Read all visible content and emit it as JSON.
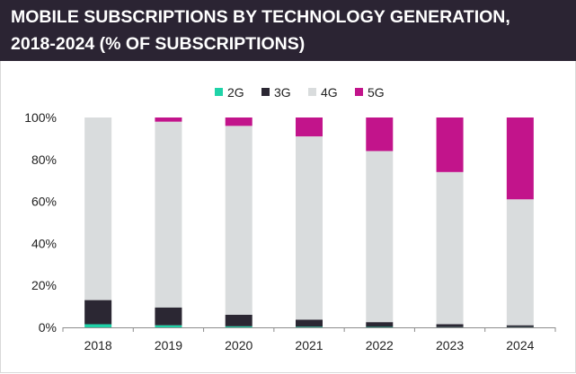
{
  "title": "MOBILE SUBSCRIPTIONS BY TECHNOLOGY GENERATION,\n2018-2024 (% OF SUBSCRIPTIONS)",
  "colors": {
    "title_background": "#2b2433",
    "title_text": "#ffffff",
    "2G": "#1fd3a8",
    "3G": "#2b2733",
    "4G": "#d9dcdd",
    "5G": "#c2148b"
  },
  "chart_data": {
    "type": "bar",
    "stacked": true,
    "title": "MOBILE SUBSCRIPTIONS BY TECHNOLOGY GENERATION, 2018-2024 (% OF SUBSCRIPTIONS)",
    "categories": [
      "2018",
      "2019",
      "2020",
      "2021",
      "2022",
      "2023",
      "2024"
    ],
    "series": [
      {
        "name": "2G",
        "values": [
          1.5,
          1.0,
          0.5,
          0.3,
          0.2,
          0.1,
          0.1
        ]
      },
      {
        "name": "3G",
        "values": [
          11.5,
          8.5,
          5.5,
          3.4,
          2.3,
          1.4,
          0.9
        ]
      },
      {
        "name": "4G",
        "values": [
          87.0,
          88.5,
          90.0,
          87.3,
          81.5,
          72.5,
          60.0
        ]
      },
      {
        "name": "5G",
        "values": [
          0.0,
          2.0,
          4.0,
          9.0,
          16.0,
          26.0,
          39.0
        ]
      }
    ],
    "ylim": [
      0,
      100
    ],
    "yticks": [
      "0%",
      "20%",
      "40%",
      "60%",
      "80%",
      "100%"
    ],
    "xlabel": "",
    "ylabel": "",
    "grid": false,
    "legend_position": "top"
  }
}
